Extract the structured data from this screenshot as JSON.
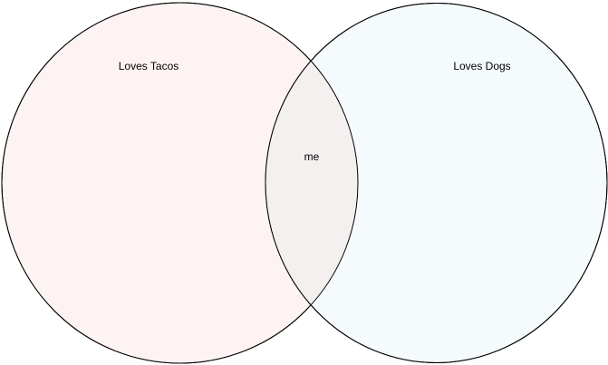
{
  "diagram": {
    "type": "venn",
    "sets": [
      {
        "label": "Loves Tacos",
        "fill": "#fdf3f2",
        "stroke": "#000000"
      },
      {
        "label": "Loves Dogs",
        "fill": "#f5fbfd",
        "stroke": "#000000"
      }
    ],
    "intersection": {
      "label": "me",
      "fill": "#f4f0ef"
    }
  }
}
